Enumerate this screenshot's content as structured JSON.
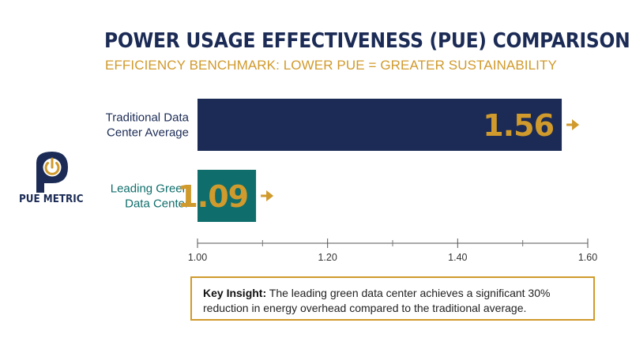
{
  "header": {
    "title": "POWER USAGE EFFECTIVENESS (PUE) COMPARISON",
    "subtitle": "EFFICIENCY BENCHMARK: LOWER PUE = GREATER SUSTAINABILITY"
  },
  "logo": {
    "icon": "power-icon",
    "label": "PUE METRIC",
    "color": "#1b2b55",
    "accent": "#d09a2c"
  },
  "chart_data": {
    "type": "bar",
    "orientation": "horizontal",
    "categories": [
      [
        "Traditional Data",
        "Center Average"
      ],
      [
        "Leading Green",
        "Data Center"
      ]
    ],
    "values": [
      1.56,
      1.09
    ],
    "data_labels": [
      "1.56",
      "1.09"
    ],
    "bar_colors": [
      "#1b2b55",
      "#0f6e6b"
    ],
    "category_label_colors": [
      "#1b2b55",
      "#0f6e6b"
    ],
    "data_label_color": "#d09a2c",
    "xlim": [
      1.0,
      1.6
    ],
    "xticks": [
      1.0,
      1.2,
      1.4,
      1.6
    ],
    "xtick_labels": [
      "1.00",
      "1.20",
      "1.40",
      "1.60"
    ],
    "minor_ticks": true,
    "grid": false,
    "title": "POWER USAGE EFFECTIVENESS (PUE) COMPARISON",
    "subtitle": "EFFICIENCY BENCHMARK: LOWER PUE = GREATER SUSTAINABILITY"
  },
  "insight": {
    "lead": "Key Insight:",
    "text": " The leading green data center achieves a significant 30% reduction in energy overhead compared to the traditional average.",
    "border_color": "#d09a2c"
  }
}
